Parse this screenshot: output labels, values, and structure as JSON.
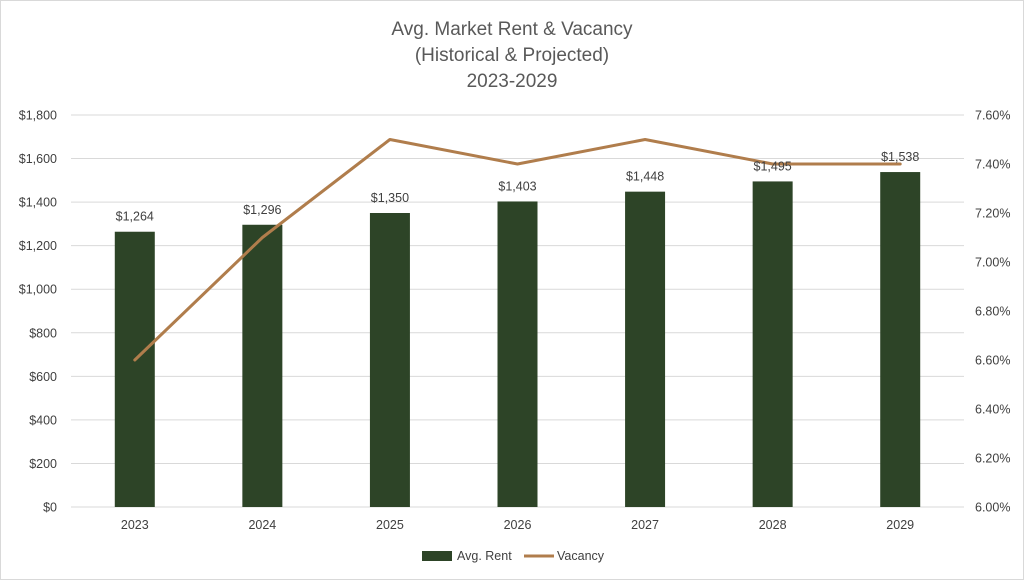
{
  "chart_data": {
    "type": "bar",
    "title": [
      "Avg. Market Rent & Vacancy",
      "(Historical & Projected)",
      "2023-2029"
    ],
    "categories": [
      "2023",
      "2024",
      "2025",
      "2026",
      "2027",
      "2028",
      "2029"
    ],
    "series": [
      {
        "name": "Avg. Rent",
        "type": "bar",
        "axis": "left",
        "values": [
          1264,
          1296,
          1350,
          1403,
          1448,
          1495,
          1538
        ],
        "labels": [
          "$1,264",
          "$1,296",
          "$1,350",
          "$1,403",
          "$1,448",
          "$1,495",
          "$1,538"
        ],
        "color": "#2d4427"
      },
      {
        "name": "Vacancy",
        "type": "line",
        "axis": "right",
        "values": [
          6.6,
          7.1,
          7.5,
          7.4,
          7.5,
          7.4,
          7.4
        ],
        "color": "#b07d4c"
      }
    ],
    "y_left": {
      "min": 0,
      "max": 1800,
      "ticks": [
        0,
        200,
        400,
        600,
        800,
        1000,
        1200,
        1400,
        1600,
        1800
      ],
      "tick_labels": [
        "$0",
        "$200",
        "$400",
        "$600",
        "$800",
        "$1,000",
        "$1,200",
        "$1,400",
        "$1,600",
        "$1,800"
      ]
    },
    "y_right": {
      "min": 6.0,
      "max": 7.6,
      "ticks": [
        6.0,
        6.2,
        6.4,
        6.6,
        6.8,
        7.0,
        7.2,
        7.4,
        7.6
      ],
      "tick_labels": [
        "6.00%",
        "6.20%",
        "6.40%",
        "6.60%",
        "6.80%",
        "7.00%",
        "7.20%",
        "7.40%",
        "7.60%"
      ]
    },
    "grid": true,
    "legend": "bottom"
  }
}
